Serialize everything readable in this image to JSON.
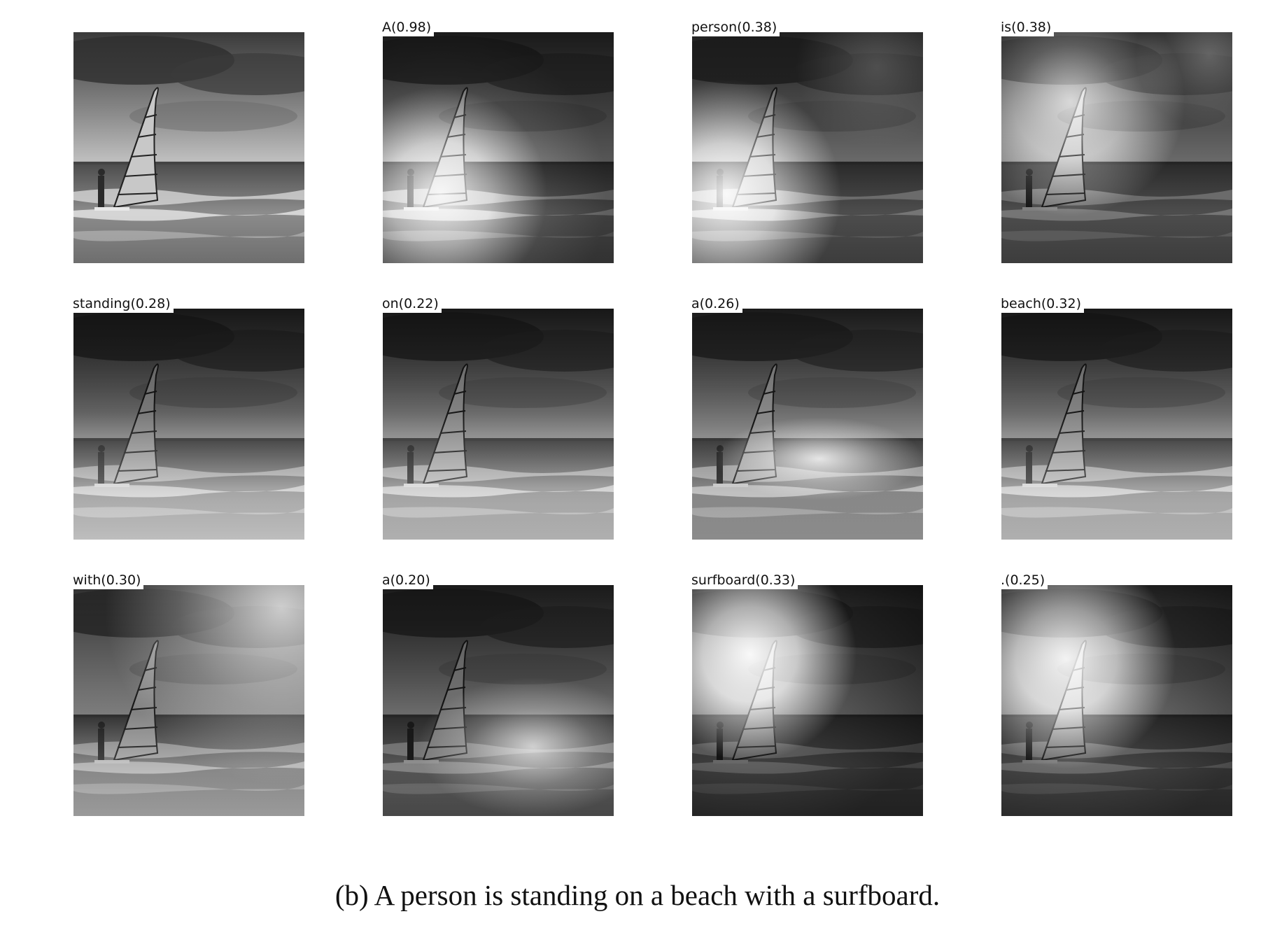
{
  "figure": {
    "caption": "(b) A person is standing on a beach with a surfboard.",
    "panels": [
      {
        "word": "",
        "attention_peak": null,
        "original": true
      },
      {
        "word": "A(0.98)",
        "focus": "person"
      },
      {
        "word": "person(0.38)",
        "focus": "person"
      },
      {
        "word": "is(0.38)",
        "focus": "sail-top"
      },
      {
        "word": "standing(0.28)",
        "focus": "beach"
      },
      {
        "word": "on(0.22)",
        "focus": "beach"
      },
      {
        "word": "a(0.26)",
        "focus": "waves"
      },
      {
        "word": "beach(0.32)",
        "focus": "beach"
      },
      {
        "word": "with(0.30)",
        "focus": "sky"
      },
      {
        "word": "a(0.20)",
        "focus": "waves"
      },
      {
        "word": "surfboard(0.33)",
        "focus": "sail"
      },
      {
        "word": ".(0.25)",
        "focus": "sail"
      }
    ]
  }
}
